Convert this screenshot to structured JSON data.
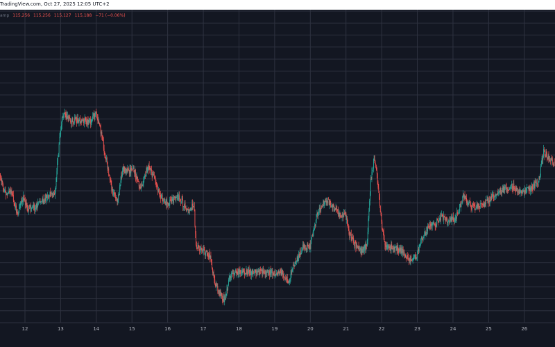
{
  "header": {
    "text": "TradingView.com, Oct 27, 2025 12:05 UTC+2"
  },
  "ohlc": {
    "symbol_fragment": "amp",
    "open": "115,256",
    "high": "115,256",
    "low": "115,127",
    "close": "115,188",
    "change": "−71 (−0.06%)"
  },
  "colors": {
    "background": "#131722",
    "grid": "#2e3240",
    "up": "#26a69a",
    "down": "#ef5350",
    "axis_text": "#b2b5be",
    "header_bg": "#ffffff"
  },
  "chart_data": {
    "type": "candlestick",
    "title": "",
    "xlabel": "",
    "ylabel": "",
    "grid": true,
    "x_tick_labels": [
      "12",
      "13",
      "14",
      "15",
      "16",
      "17",
      "18",
      "19",
      "20",
      "21",
      "22",
      "23",
      "24",
      "25",
      "26"
    ],
    "xlim": [
      11.3,
      26.86
    ],
    "ylim": [
      106000,
      118400
    ],
    "price_path": [
      [
        11.3,
        111900
      ],
      [
        11.45,
        111100
      ],
      [
        11.6,
        111300
      ],
      [
        11.8,
        110300
      ],
      [
        11.95,
        111000
      ],
      [
        12.1,
        110500
      ],
      [
        12.3,
        110600
      ],
      [
        12.55,
        110900
      ],
      [
        12.7,
        111100
      ],
      [
        12.85,
        111200
      ],
      [
        13.0,
        113600
      ],
      [
        13.1,
        114300
      ],
      [
        13.25,
        114000
      ],
      [
        13.5,
        114000
      ],
      [
        13.7,
        114000
      ],
      [
        13.8,
        113900
      ],
      [
        13.98,
        114300
      ],
      [
        14.1,
        113800
      ],
      [
        14.25,
        112700
      ],
      [
        14.35,
        112000
      ],
      [
        14.45,
        111200
      ],
      [
        14.6,
        110800
      ],
      [
        14.75,
        112100
      ],
      [
        14.85,
        112000
      ],
      [
        15.05,
        112100
      ],
      [
        15.25,
        111300
      ],
      [
        15.45,
        112200
      ],
      [
        15.6,
        111800
      ],
      [
        15.8,
        111000
      ],
      [
        16.0,
        110700
      ],
      [
        16.3,
        111000
      ],
      [
        16.6,
        110400
      ],
      [
        16.75,
        110700
      ],
      [
        16.8,
        109000
      ],
      [
        16.95,
        108900
      ],
      [
        17.2,
        108600
      ],
      [
        17.35,
        107500
      ],
      [
        17.5,
        107100
      ],
      [
        17.6,
        106900
      ],
      [
        17.75,
        107800
      ],
      [
        17.9,
        108000
      ],
      [
        18.1,
        108000
      ],
      [
        18.5,
        108000
      ],
      [
        18.9,
        108000
      ],
      [
        19.2,
        108000
      ],
      [
        19.4,
        107600
      ],
      [
        19.5,
        108200
      ],
      [
        19.6,
        108400
      ],
      [
        19.8,
        109000
      ],
      [
        20.0,
        109000
      ],
      [
        20.2,
        110300
      ],
      [
        20.35,
        110700
      ],
      [
        20.5,
        110800
      ],
      [
        20.7,
        110500
      ],
      [
        20.9,
        110200
      ],
      [
        21.0,
        110300
      ],
      [
        21.1,
        109500
      ],
      [
        21.3,
        109000
      ],
      [
        21.45,
        108800
      ],
      [
        21.6,
        109100
      ],
      [
        21.7,
        111600
      ],
      [
        21.8,
        112600
      ],
      [
        21.9,
        111500
      ],
      [
        22.0,
        110000
      ],
      [
        22.1,
        109000
      ],
      [
        22.3,
        109000
      ],
      [
        22.6,
        108800
      ],
      [
        22.8,
        108500
      ],
      [
        23.0,
        108700
      ],
      [
        23.1,
        109200
      ],
      [
        23.3,
        109800
      ],
      [
        23.5,
        109900
      ],
      [
        23.7,
        110200
      ],
      [
        23.9,
        110000
      ],
      [
        24.1,
        110200
      ],
      [
        24.3,
        111000
      ],
      [
        24.5,
        110600
      ],
      [
        24.7,
        110600
      ],
      [
        24.9,
        110700
      ],
      [
        25.1,
        111000
      ],
      [
        25.3,
        111200
      ],
      [
        25.5,
        111300
      ],
      [
        25.7,
        111400
      ],
      [
        25.9,
        111200
      ],
      [
        26.1,
        111300
      ],
      [
        26.25,
        111400
      ],
      [
        26.4,
        111600
      ],
      [
        26.55,
        112800
      ],
      [
        26.7,
        112500
      ],
      [
        26.86,
        112300
      ]
    ]
  }
}
